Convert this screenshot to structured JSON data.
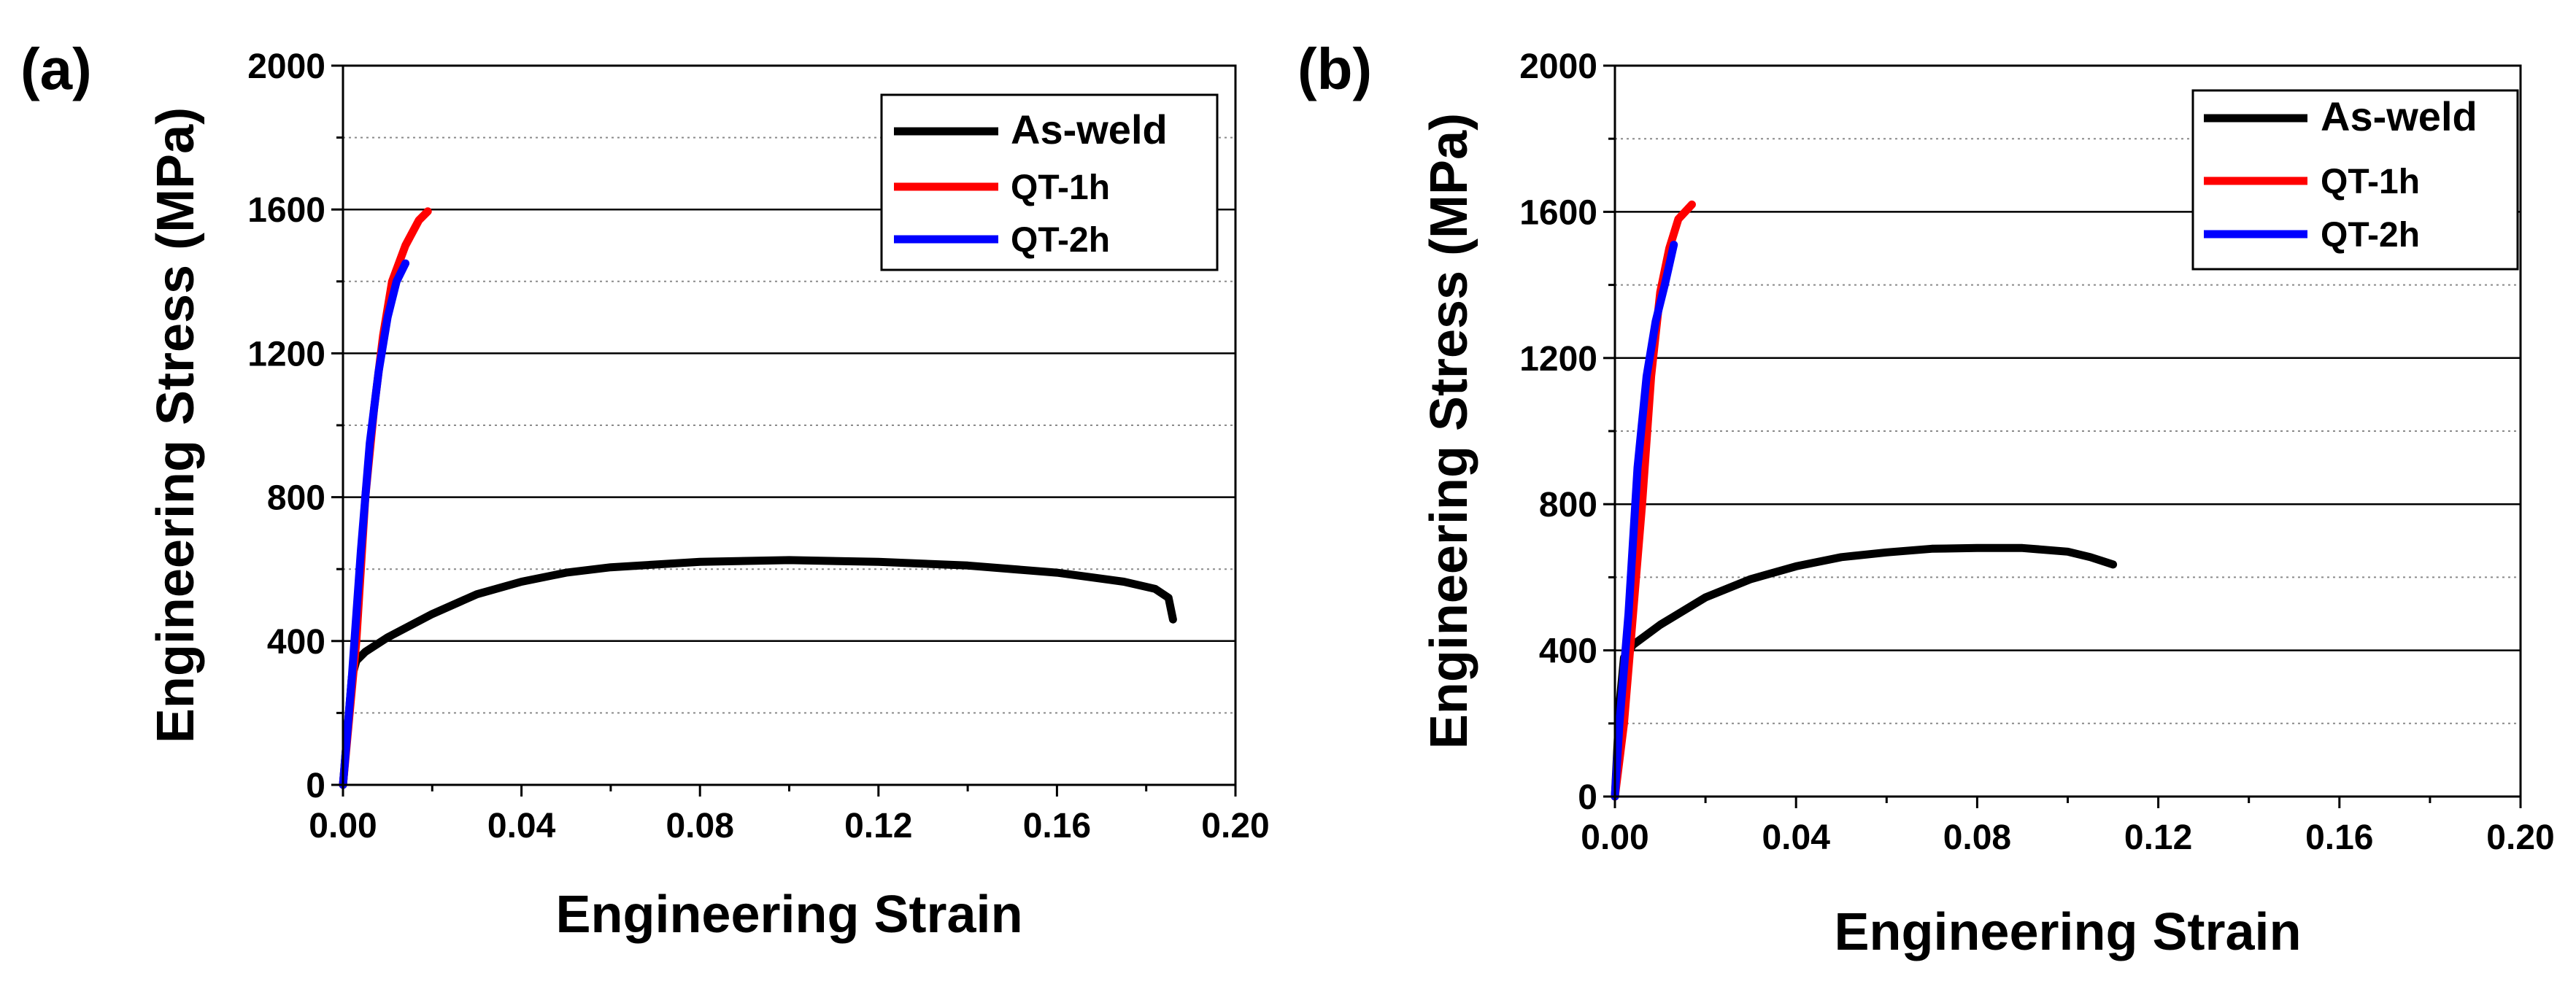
{
  "chart_data": [
    {
      "panel_label": "(a)",
      "type": "line",
      "xlabel": "Engineering Strain",
      "ylabel": "Engineering Stress (MPa)",
      "xlim": [
        0,
        0.2
      ],
      "ylim": [
        0,
        2000
      ],
      "x_ticks": [
        "0.00",
        "0.04",
        "0.08",
        "0.12",
        "0.16",
        "0.20"
      ],
      "x_tick_values": [
        0,
        0.04,
        0.08,
        0.12,
        0.16,
        0.2
      ],
      "y_ticks": [
        "0",
        "400",
        "800",
        "1200",
        "1600",
        "2000"
      ],
      "y_tick_values": [
        0,
        400,
        800,
        1200,
        1600,
        2000
      ],
      "grid": "horizontal major solid, minor dotted",
      "legend_position": "top-right",
      "series": [
        {
          "name": "As-weld",
          "color": "#000000",
          "points": [
            [
              0,
              0
            ],
            [
              0.001,
              150
            ],
            [
              0.002,
              300
            ],
            [
              0.003,
              345
            ],
            [
              0.005,
              370
            ],
            [
              0.01,
              410
            ],
            [
              0.02,
              475
            ],
            [
              0.03,
              530
            ],
            [
              0.04,
              565
            ],
            [
              0.05,
              590
            ],
            [
              0.06,
              605
            ],
            [
              0.08,
              620
            ],
            [
              0.1,
              625
            ],
            [
              0.12,
              620
            ],
            [
              0.14,
              610
            ],
            [
              0.16,
              590
            ],
            [
              0.175,
              565
            ],
            [
              0.182,
              545
            ],
            [
              0.185,
              520
            ],
            [
              0.186,
              460
            ]
          ]
        },
        {
          "name": "QT-1h",
          "color": "#ff0000",
          "points": [
            [
              0,
              0
            ],
            [
              0.003,
              400
            ],
            [
              0.005,
              800
            ],
            [
              0.007,
              1050
            ],
            [
              0.009,
              1250
            ],
            [
              0.011,
              1400
            ],
            [
              0.014,
              1500
            ],
            [
              0.017,
              1570
            ],
            [
              0.019,
              1595
            ]
          ]
        },
        {
          "name": "QT-2h",
          "color": "#0000ff",
          "points": [
            [
              0,
              0
            ],
            [
              0.002,
              300
            ],
            [
              0.004,
              650
            ],
            [
              0.006,
              950
            ],
            [
              0.008,
              1150
            ],
            [
              0.01,
              1300
            ],
            [
              0.012,
              1400
            ],
            [
              0.014,
              1450
            ]
          ]
        }
      ]
    },
    {
      "panel_label": "(b)",
      "type": "line",
      "xlabel": "Engineering Strain",
      "ylabel": "Engineering Stress (MPa)",
      "xlim": [
        0,
        0.2
      ],
      "ylim": [
        0,
        2000
      ],
      "x_ticks": [
        "0.00",
        "0.04",
        "0.08",
        "0.12",
        "0.16",
        "0.20"
      ],
      "x_tick_values": [
        0,
        0.04,
        0.08,
        0.12,
        0.16,
        0.2
      ],
      "y_ticks": [
        "0",
        "400",
        "800",
        "1200",
        "1600",
        "2000"
      ],
      "y_tick_values": [
        0,
        400,
        800,
        1200,
        1600,
        2000
      ],
      "grid": "horizontal major solid, minor dotted",
      "legend_position": "top-right",
      "series": [
        {
          "name": "As-weld",
          "color": "#000000",
          "points": [
            [
              0,
              0
            ],
            [
              0.001,
              250
            ],
            [
              0.002,
              380
            ],
            [
              0.004,
              415
            ],
            [
              0.01,
              470
            ],
            [
              0.02,
              545
            ],
            [
              0.03,
              595
            ],
            [
              0.04,
              630
            ],
            [
              0.05,
              655
            ],
            [
              0.06,
              668
            ],
            [
              0.07,
              678
            ],
            [
              0.08,
              680
            ],
            [
              0.09,
              680
            ],
            [
              0.1,
              670
            ],
            [
              0.105,
              655
            ],
            [
              0.11,
              635
            ]
          ]
        },
        {
          "name": "QT-1h",
          "color": "#ff0000",
          "points": [
            [
              0,
              0
            ],
            [
              0.002,
              200
            ],
            [
              0.004,
              500
            ],
            [
              0.006,
              800
            ],
            [
              0.008,
              1150
            ],
            [
              0.01,
              1380
            ],
            [
              0.012,
              1500
            ],
            [
              0.014,
              1580
            ],
            [
              0.017,
              1620
            ]
          ]
        },
        {
          "name": "QT-2h",
          "color": "#0000ff",
          "points": [
            [
              0,
              0
            ],
            [
              0.001,
              200
            ],
            [
              0.003,
              500
            ],
            [
              0.005,
              900
            ],
            [
              0.007,
              1150
            ],
            [
              0.009,
              1300
            ],
            [
              0.011,
              1400
            ],
            [
              0.013,
              1510
            ]
          ]
        }
      ]
    }
  ]
}
